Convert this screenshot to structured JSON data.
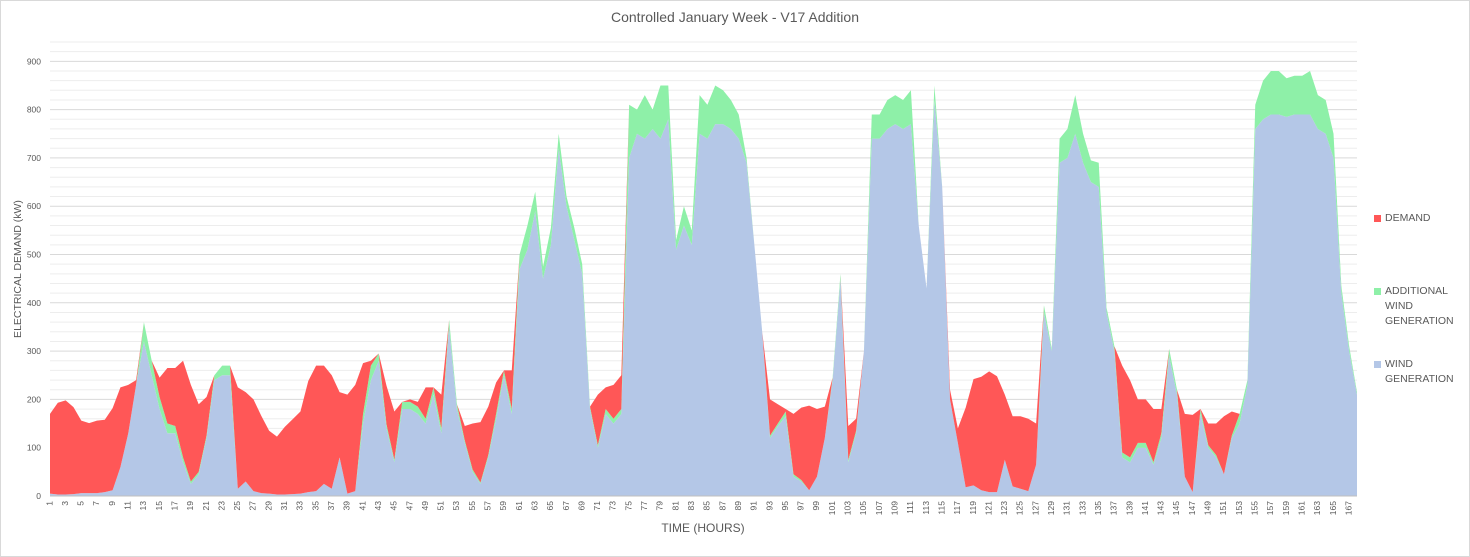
{
  "chart_data": {
    "type": "area",
    "stacked": true,
    "title": "Controlled January Week - V17 Addition",
    "xlabel": "TIME (HOURS)",
    "ylabel": "ELECTRICAL DEMAND (kW)",
    "ylim": [
      0,
      940
    ],
    "yticks": [
      0,
      100,
      200,
      300,
      400,
      500,
      600,
      700,
      800,
      900
    ],
    "grid": true,
    "legend_position": "right",
    "x": [
      1,
      2,
      3,
      4,
      5,
      6,
      7,
      8,
      9,
      10,
      11,
      12,
      13,
      14,
      15,
      16,
      17,
      18,
      19,
      20,
      21,
      22,
      23,
      24,
      25,
      26,
      27,
      28,
      29,
      30,
      31,
      32,
      33,
      34,
      35,
      36,
      37,
      38,
      39,
      40,
      41,
      42,
      43,
      44,
      45,
      46,
      47,
      48,
      49,
      50,
      51,
      52,
      53,
      54,
      55,
      56,
      57,
      58,
      59,
      60,
      61,
      62,
      63,
      64,
      65,
      66,
      67,
      68,
      69,
      70,
      71,
      72,
      73,
      74,
      75,
      76,
      77,
      78,
      79,
      80,
      81,
      82,
      83,
      84,
      85,
      86,
      87,
      88,
      89,
      90,
      91,
      92,
      93,
      94,
      95,
      96,
      97,
      98,
      99,
      100,
      101,
      102,
      103,
      104,
      105,
      106,
      107,
      108,
      109,
      110,
      111,
      112,
      113,
      114,
      115,
      116,
      117,
      118,
      119,
      120,
      121,
      122,
      123,
      124,
      125,
      126,
      127,
      128,
      129,
      130,
      131,
      132,
      133,
      134,
      135,
      136,
      137,
      138,
      139,
      140,
      141,
      142,
      143,
      144,
      145,
      146,
      147,
      148,
      149,
      150,
      151,
      152,
      153,
      154,
      155,
      156,
      157,
      158,
      159,
      160,
      161,
      162,
      163,
      164,
      165,
      166,
      167,
      168
    ],
    "xtick_labels": [
      "1",
      "3",
      "5",
      "7",
      "9",
      "11",
      "13",
      "15",
      "17",
      "19",
      "21",
      "23",
      "25",
      "27",
      "29",
      "31",
      "33",
      "35",
      "37",
      "39",
      "41",
      "43",
      "45",
      "47",
      "49",
      "51",
      "53",
      "55",
      "57",
      "59",
      "61",
      "63",
      "65",
      "67",
      "69",
      "71",
      "73",
      "75",
      "77",
      "79",
      "81",
      "83",
      "85",
      "87",
      "89",
      "91",
      "93",
      "95",
      "97",
      "99",
      "101",
      "103",
      "105",
      "107",
      "109",
      "111",
      "113",
      "115",
      "117",
      "119",
      "121",
      "123",
      "125",
      "127",
      "129",
      "131",
      "133",
      "135",
      "137",
      "139",
      "141",
      "143",
      "145",
      "147",
      "149",
      "151",
      "153",
      "155",
      "157",
      "159",
      "161",
      "163",
      "165",
      "167"
    ],
    "series": [
      {
        "name": "WIND GENERATION",
        "color": "#b4c7e7",
        "values": [
          5,
          3,
          3,
          4,
          6,
          6,
          6,
          8,
          12,
          60,
          130,
          230,
          320,
          250,
          180,
          130,
          130,
          70,
          25,
          45,
          120,
          240,
          250,
          250,
          15,
          30,
          10,
          6,
          5,
          3,
          3,
          4,
          5,
          8,
          10,
          25,
          15,
          80,
          5,
          10,
          150,
          240,
          280,
          140,
          70,
          180,
          180,
          170,
          150,
          210,
          130,
          350,
          180,
          110,
          50,
          25,
          80,
          160,
          250,
          170,
          470,
          510,
          590,
          450,
          520,
          720,
          600,
          530,
          460,
          180,
          100,
          170,
          150,
          170,
          700,
          750,
          740,
          760,
          740,
          780,
          510,
          560,
          520,
          750,
          740,
          770,
          770,
          760,
          740,
          690,
          520,
          340,
          120,
          145,
          165,
          40,
          30,
          12,
          40,
          120,
          240,
          450,
          70,
          130,
          300,
          740,
          740,
          760,
          770,
          760,
          770,
          560,
          430,
          820,
          640,
          200,
          110,
          18,
          22,
          12,
          8,
          8,
          75,
          20,
          15,
          10,
          65,
          380,
          300,
          690,
          700,
          750,
          690,
          650,
          640,
          380,
          300,
          80,
          70,
          100,
          100,
          65,
          120,
          290,
          210,
          40,
          8,
          170,
          100,
          80,
          45,
          120,
          150,
          230,
          760,
          780,
          790,
          790,
          785,
          790,
          790,
          790,
          760,
          750,
          700,
          420,
          300,
          210
        ]
      },
      {
        "name": "ADDITIONAL WIND GENERATION",
        "color": "#8ef0a8",
        "values": [
          0,
          0,
          0,
          0,
          0,
          0,
          0,
          0,
          0,
          0,
          0,
          0,
          40,
          30,
          25,
          20,
          15,
          10,
          5,
          5,
          5,
          10,
          20,
          20,
          0,
          0,
          0,
          0,
          0,
          0,
          0,
          0,
          0,
          0,
          0,
          0,
          0,
          0,
          0,
          0,
          20,
          30,
          15,
          8,
          5,
          15,
          15,
          15,
          10,
          15,
          10,
          15,
          10,
          5,
          5,
          3,
          5,
          10,
          10,
          10,
          30,
          50,
          40,
          25,
          35,
          30,
          20,
          25,
          20,
          5,
          5,
          10,
          10,
          10,
          110,
          50,
          90,
          40,
          110,
          70,
          20,
          40,
          30,
          80,
          70,
          80,
          70,
          60,
          50,
          10,
          0,
          0,
          5,
          5,
          10,
          5,
          3,
          0,
          0,
          0,
          5,
          10,
          5,
          5,
          0,
          50,
          50,
          60,
          60,
          60,
          70,
          0,
          0,
          30,
          0,
          0,
          0,
          0,
          0,
          0,
          0,
          0,
          0,
          0,
          0,
          0,
          0,
          15,
          5,
          50,
          60,
          80,
          60,
          45,
          50,
          10,
          10,
          10,
          10,
          10,
          10,
          5,
          10,
          15,
          10,
          0,
          0,
          10,
          5,
          5,
          0,
          5,
          20,
          10,
          50,
          80,
          90,
          90,
          80,
          80,
          80,
          90,
          70,
          70,
          50,
          15,
          10,
          5
        ]
      },
      {
        "name": "DEMAND",
        "color": "#ff5757",
        "values": [
          165,
          190,
          195,
          180,
          150,
          145,
          150,
          150,
          170,
          165,
          100,
          10,
          0,
          0,
          40,
          115,
          120,
          200,
          200,
          140,
          80,
          0,
          0,
          0,
          210,
          185,
          190,
          160,
          130,
          120,
          140,
          155,
          170,
          230,
          260,
          245,
          235,
          135,
          205,
          220,
          105,
          10,
          0,
          80,
          100,
          0,
          5,
          10,
          65,
          0,
          70,
          0,
          0,
          30,
          95,
          125,
          100,
          65,
          0,
          80,
          0,
          0,
          0,
          0,
          0,
          0,
          0,
          0,
          0,
          0,
          105,
          45,
          70,
          70,
          0,
          0,
          0,
          0,
          0,
          0,
          0,
          0,
          0,
          0,
          0,
          0,
          0,
          0,
          0,
          0,
          0,
          0,
          75,
          40,
          5,
          125,
          150,
          175,
          140,
          65,
          0,
          0,
          70,
          25,
          0,
          0,
          0,
          0,
          0,
          0,
          0,
          0,
          0,
          0,
          0,
          20,
          30,
          165,
          220,
          235,
          250,
          240,
          135,
          145,
          150,
          150,
          85,
          0,
          0,
          0,
          0,
          0,
          0,
          0,
          0,
          0,
          0,
          180,
          160,
          90,
          90,
          110,
          50,
          0,
          0,
          130,
          160,
          0,
          45,
          65,
          120,
          50,
          0,
          0,
          0,
          0,
          0,
          0,
          0,
          0,
          0,
          0,
          0,
          0,
          0,
          0,
          0,
          0
        ]
      }
    ]
  },
  "legend": {
    "items": [
      {
        "label": "DEMAND",
        "color": "#ff5757"
      },
      {
        "label": "ADDITIONAL WIND GENERATION",
        "color": "#8ef0a8"
      },
      {
        "label": "WIND GENERATION",
        "color": "#b4c7e7"
      }
    ]
  }
}
